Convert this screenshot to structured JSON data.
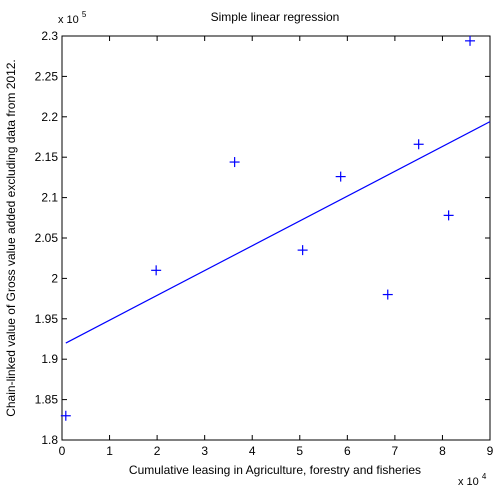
{
  "colors": {
    "data": "#0000ff",
    "fit": "#0000ff",
    "axes": "#000000",
    "background": "#ffffff"
  },
  "chart_data": {
    "type": "scatter",
    "title": "Simple linear regression",
    "xlabel": "Cumulative leasing in Agriculture, forestry and fisheries",
    "ylabel": "Chain-linked value of Gross value added excluding data from 2012.",
    "xlim": [
      0,
      90000
    ],
    "ylim": [
      180000,
      230000
    ],
    "x_exponent_label": "x 10",
    "x_exponent_power": "4",
    "y_exponent_label": "x 10",
    "y_exponent_power": "5",
    "x_tick_values": [
      0,
      10000,
      20000,
      30000,
      40000,
      50000,
      60000,
      70000,
      80000,
      90000
    ],
    "x_tick_labels": [
      "0",
      "1",
      "2",
      "3",
      "4",
      "5",
      "6",
      "7",
      "8",
      "9"
    ],
    "y_tick_values": [
      180000,
      185000,
      190000,
      195000,
      200000,
      205000,
      210000,
      215000,
      220000,
      225000,
      230000
    ],
    "y_tick_labels": [
      "1.8",
      "1.85",
      "1.9",
      "1.95",
      "2",
      "2.05",
      "2.1",
      "2.15",
      "2.2",
      "2.25",
      "2.3"
    ],
    "grid": false,
    "legend": "none",
    "points": [
      {
        "x": 800,
        "y": 183000
      },
      {
        "x": 19800,
        "y": 201000
      },
      {
        "x": 36300,
        "y": 214400
      },
      {
        "x": 50600,
        "y": 203500
      },
      {
        "x": 58600,
        "y": 212600
      },
      {
        "x": 68500,
        "y": 198000
      },
      {
        "x": 75000,
        "y": 216600
      },
      {
        "x": 81300,
        "y": 207800
      },
      {
        "x": 85800,
        "y": 229400
      }
    ],
    "fit_line": [
      {
        "x": 800,
        "y": 192000
      },
      {
        "x": 90000,
        "y": 219400
      }
    ]
  }
}
